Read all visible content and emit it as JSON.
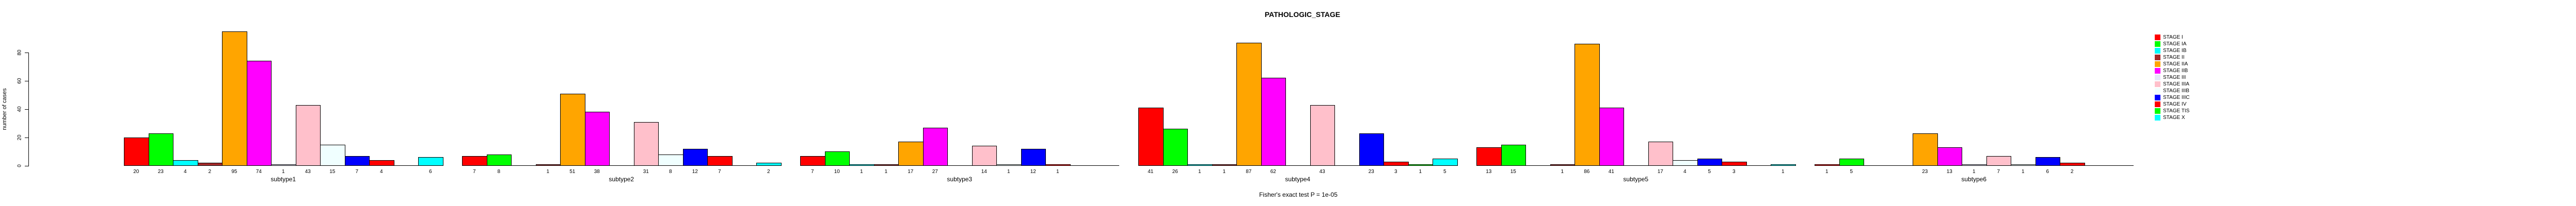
{
  "title": "PATHOLOGIC_STAGE",
  "caption": "Fisher's exact test P = 1e-05",
  "y_axis": {
    "label": "number of cases",
    "ticks": [
      0,
      20,
      40,
      60,
      80
    ]
  },
  "legend": [
    {
      "label": "STAGE I",
      "color": "#FF0000"
    },
    {
      "label": "STAGE IA",
      "color": "#00FF00"
    },
    {
      "label": "STAGE IB",
      "color": "#00FFFF"
    },
    {
      "label": "STAGE II",
      "color": "#A52A2A"
    },
    {
      "label": "STAGE IIA",
      "color": "#FFA500"
    },
    {
      "label": "STAGE IIB",
      "color": "#FF00FF"
    },
    {
      "label": "STAGE III",
      "color": "#E6E6FA"
    },
    {
      "label": "STAGE IIIA",
      "color": "#FFC0CB"
    },
    {
      "label": "STAGE IIIB",
      "color": "#F0FFFF"
    },
    {
      "label": "STAGE IIIC",
      "color": "#0000FF"
    },
    {
      "label": "STAGE IV",
      "color": "#FF0000"
    },
    {
      "label": "STAGE TIS",
      "color": "#00FF00"
    },
    {
      "label": "STAGE X",
      "color": "#00FFFF"
    }
  ],
  "chart_data": {
    "type": "bar",
    "title": "PATHOLOGIC_STAGE",
    "xlabel": "",
    "ylabel": "number of cases",
    "ylim": [
      0,
      80
    ],
    "grid": false,
    "legend_position": "right",
    "annotation": "Fisher's exact test P = 1e-05",
    "stages": [
      "STAGE I",
      "STAGE IA",
      "STAGE IB",
      "STAGE II",
      "STAGE IIA",
      "STAGE IIB",
      "STAGE III",
      "STAGE IIIA",
      "STAGE IIIB",
      "STAGE IIIC",
      "STAGE IV",
      "STAGE TIS",
      "STAGE X"
    ],
    "stage_colors": [
      "#FF0000",
      "#00FF00",
      "#00FFFF",
      "#A52A2A",
      "#FFA500",
      "#FF00FF",
      "#E6E6FA",
      "#FFC0CB",
      "#F0FFFF",
      "#0000FF",
      "#FF0000",
      "#00FF00",
      "#00FFFF"
    ],
    "groups": [
      {
        "label": "subtype1",
        "values": [
          20,
          23,
          4,
          2,
          95,
          74,
          1,
          43,
          15,
          7,
          4,
          0,
          6
        ]
      },
      {
        "label": "subtype2",
        "values": [
          7,
          8,
          0,
          1,
          51,
          38,
          0,
          31,
          8,
          12,
          7,
          0,
          2
        ]
      },
      {
        "label": "subtype3",
        "values": [
          7,
          10,
          1,
          1,
          17,
          27,
          0,
          14,
          1,
          12,
          1,
          0,
          0
        ]
      },
      {
        "label": "subtype4",
        "values": [
          41,
          26,
          1,
          1,
          87,
          62,
          0,
          43,
          0,
          23,
          3,
          1,
          5
        ]
      },
      {
        "label": "subtype5",
        "values": [
          13,
          15,
          0,
          1,
          86,
          41,
          0,
          17,
          4,
          5,
          3,
          0,
          1
        ]
      },
      {
        "label": "subtype6",
        "values": [
          1,
          5,
          0,
          0,
          23,
          13,
          1,
          7,
          1,
          6,
          2,
          0,
          0
        ]
      }
    ]
  }
}
